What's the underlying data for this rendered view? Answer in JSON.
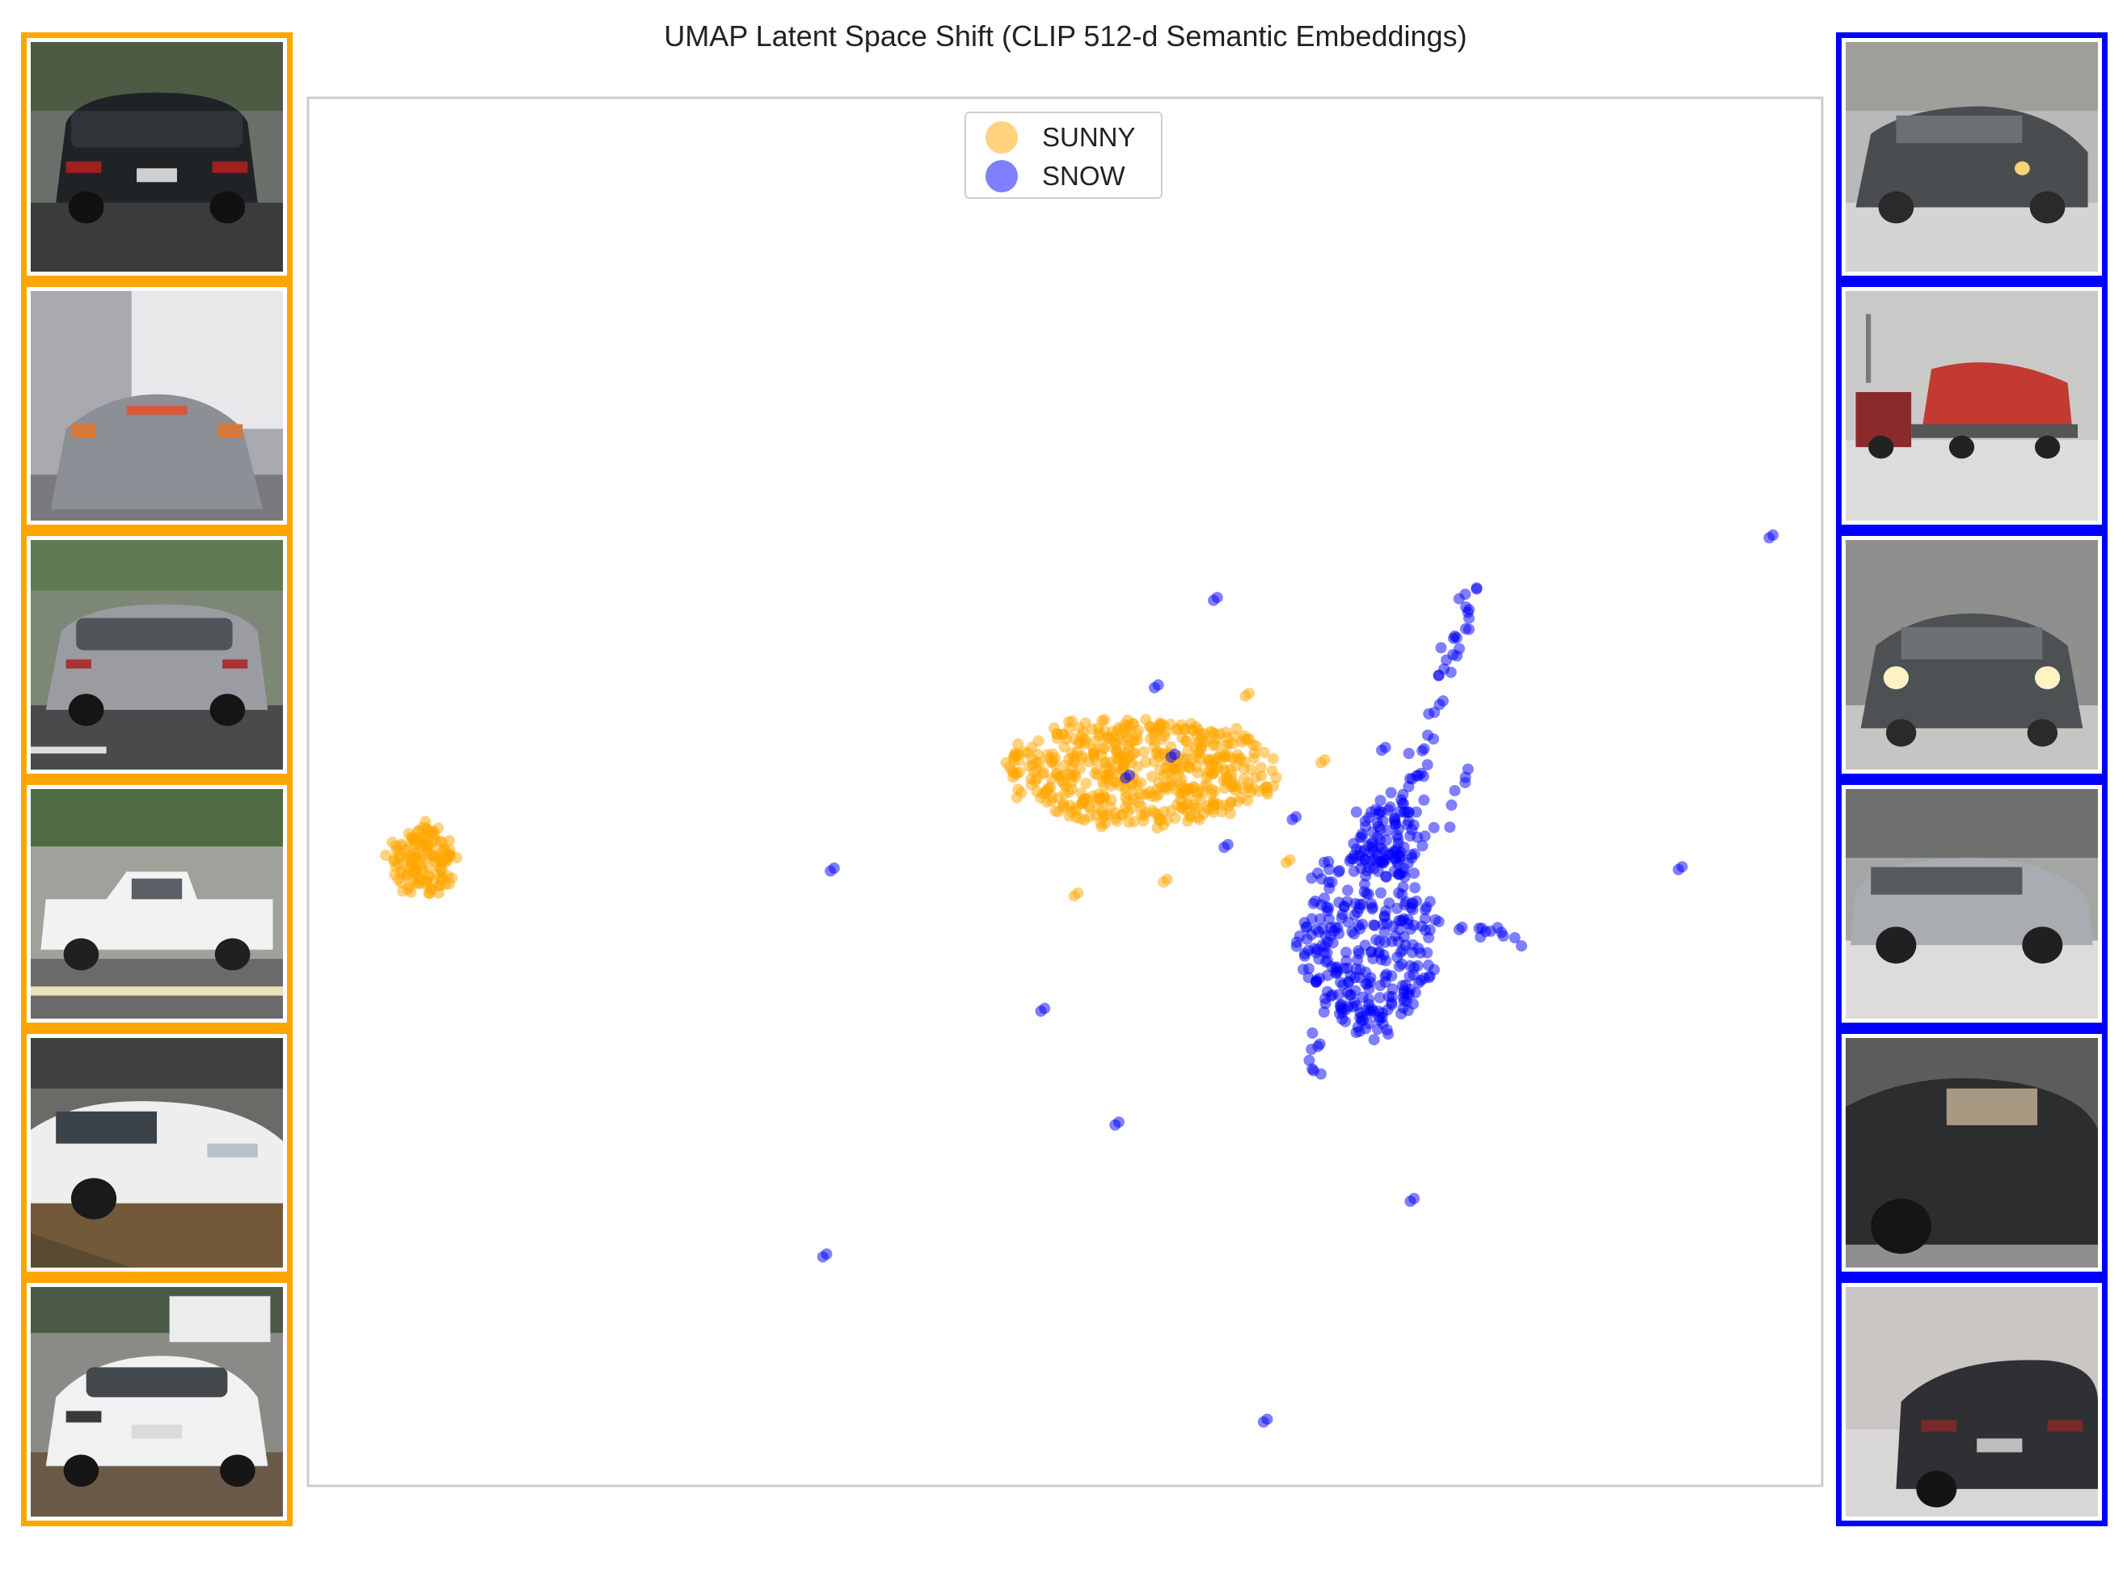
{
  "chart_data": {
    "type": "scatter",
    "title": "UMAP Latent Space Shift (CLIP 512-d Semantic Embeddings)",
    "xlabel": "",
    "ylabel": "",
    "xlim": [
      0,
      100
    ],
    "ylim": [
      0,
      100
    ],
    "grid": false,
    "legend_position": "top-center",
    "series": [
      {
        "name": "SUNNY",
        "color": "#FFA500",
        "clusters": [
          {
            "cx": 7.6,
            "cy": 45.0,
            "rx": 2.2,
            "ry": 2.4,
            "n": 140
          },
          {
            "cx": 55.0,
            "cy": 51.5,
            "rx": 9.0,
            "ry": 3.9,
            "n": 520
          }
        ],
        "points": [
          [
            48.8,
            50.1
          ],
          [
            61.9,
            56.9
          ],
          [
            50.6,
            42.5
          ],
          [
            56.5,
            43.5
          ],
          [
            66.9,
            52.1
          ],
          [
            64.6,
            44.9
          ],
          [
            52.4,
            47.5
          ]
        ]
      },
      {
        "name": "SNOW",
        "color": "#0000FF",
        "clusters": [
          {
            "cx": 70.0,
            "cy": 39.5,
            "rx": 4.5,
            "ry": 7.0,
            "n": 300
          },
          {
            "cx": 71.3,
            "cy": 47.0,
            "rx": 2.0,
            "ry": 3.5,
            "n": 70
          }
        ],
        "arms": [
          {
            "from": [
              72.0,
              46.5
            ],
            "to": [
              76.9,
              65.0
            ],
            "n": 50
          },
          {
            "from": [
              74.0,
              41.0
            ],
            "to": [
              80.2,
              39.5
            ],
            "n": 14
          },
          {
            "from": [
              73.0,
              43.5
            ],
            "to": [
              77.8,
              54.5
            ],
            "n": 10
          },
          {
            "from": [
              71.0,
              34.0
            ],
            "to": [
              69.0,
              33.5
            ],
            "n": 10
          },
          {
            "from": [
              66.5,
              33.5
            ],
            "to": [
              66.5,
              29.0
            ],
            "n": 8
          }
        ],
        "points": [
          [
            59.8,
            63.8
          ],
          [
            55.9,
            57.5
          ],
          [
            34.5,
            44.3
          ],
          [
            48.4,
            34.2
          ],
          [
            53.3,
            26.0
          ],
          [
            34.0,
            16.5
          ],
          [
            72.8,
            20.5
          ],
          [
            63.1,
            4.6
          ],
          [
            96.5,
            68.3
          ],
          [
            90.5,
            44.4
          ],
          [
            70.9,
            53.0
          ],
          [
            65.0,
            48.0
          ],
          [
            60.5,
            46.0
          ],
          [
            57.0,
            52.5
          ],
          [
            54.0,
            51.0
          ]
        ]
      }
    ]
  },
  "thumbnails": {
    "sunny": [
      {
        "scene": "dark-suv-rear",
        "border": "#FFA500"
      },
      {
        "scene": "blurred-suv-truck",
        "border": "#FFA500"
      },
      {
        "scene": "gray-suv-lot",
        "border": "#FFA500"
      },
      {
        "scene": "white-pickup",
        "border": "#FFA500"
      },
      {
        "scene": "white-sedan",
        "border": "#FFA500"
      },
      {
        "scene": "white-mazda",
        "border": "#FFA500"
      }
    ],
    "snow": [
      {
        "scene": "dark-car-snow",
        "border": "#0000FF"
      },
      {
        "scene": "red-truck-snow",
        "border": "#0000FF"
      },
      {
        "scene": "headlights-snow",
        "border": "#0000FF"
      },
      {
        "scene": "silver-wagon-snow",
        "border": "#0000FF"
      },
      {
        "scene": "dark-car-blur-snow",
        "border": "#0000FF"
      },
      {
        "scene": "sedan-rear-snow",
        "border": "#0000FF"
      }
    ]
  }
}
